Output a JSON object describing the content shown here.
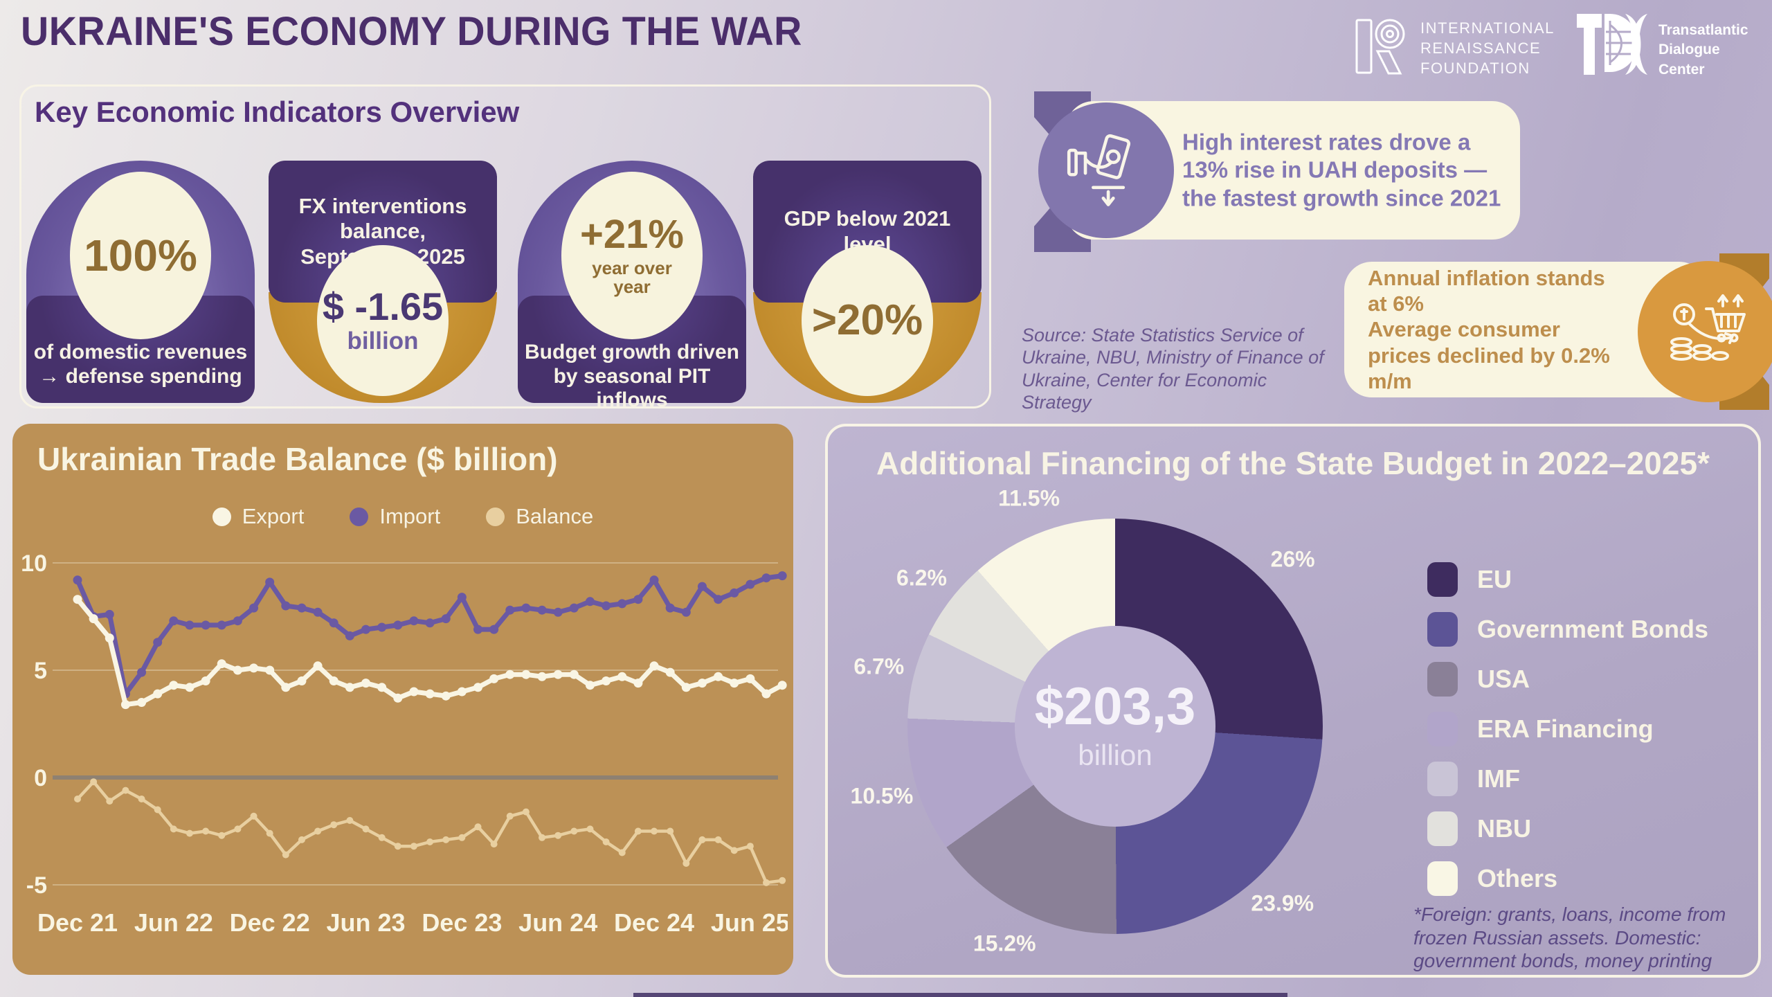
{
  "header": {
    "title": "UKRAINE'S ECONOMY DURING THE WAR",
    "irf_lines": [
      "INTERNATIONAL",
      "RENAISSANCE",
      "FOUNDATION"
    ],
    "tdc_lines": [
      "Transatlantic",
      "Dialogue",
      "Center"
    ]
  },
  "indicators": {
    "title": "Key Economic Indicators Overview",
    "cards": [
      {
        "value": "100%",
        "caption": "of domestic revenues → defense spending"
      },
      {
        "heading": "FX interventions balance, September 2025",
        "value": "$ -1.65",
        "unit": "billion"
      },
      {
        "value": "+21%",
        "subvalue": "year over year",
        "caption": "Budget growth driven by seasonal PIT inflows"
      },
      {
        "heading": "GDP below 2021 level",
        "value": ">20%"
      }
    ]
  },
  "callouts": {
    "deposits": {
      "text": "High interest rates drove a 13% rise in UAH deposits — the fastest growth since 2021",
      "icon": "hand-deposit-icon"
    },
    "inflation": {
      "line1": "Annual inflation stands at 6%",
      "line2": "Average consumer prices declined by 0.2% m/m",
      "icon": "cart-coins-icon"
    }
  },
  "source_note": "Source: State Statistics Service of Ukraine, NBU, Ministry of Finance of Ukraine, Center for Economic Strategy",
  "chart_data": [
    {
      "type": "line",
      "title": "Ukrainian Trade Balance ($ billion)",
      "xlabel": "",
      "ylabel": "",
      "ylim": [
        -6.3,
        10.8
      ],
      "yticks": [
        10,
        5,
        0,
        -5
      ],
      "x_tick_every": 6,
      "x_tick_labels": [
        "Dec 21",
        "Jun 22",
        "Dec 22",
        "Jun 23",
        "Dec 23",
        "Jun 24",
        "Dec 24",
        "Jun 25"
      ],
      "x": [
        "Dec 21",
        "Jan 22",
        "Feb 22",
        "Mar 22",
        "Apr 22",
        "May 22",
        "Jun 22",
        "Jul 22",
        "Aug 22",
        "Sep 22",
        "Oct 22",
        "Nov 22",
        "Dec 22",
        "Jan 23",
        "Feb 23",
        "Mar 23",
        "Apr 23",
        "May 23",
        "Jun 23",
        "Jul 23",
        "Aug 23",
        "Sep 23",
        "Oct 23",
        "Nov 23",
        "Dec 23",
        "Jan 24",
        "Feb 24",
        "Mar 24",
        "Apr 24",
        "May 24",
        "Jun 24",
        "Jul 24",
        "Aug 24",
        "Sep 24",
        "Oct 24",
        "Nov 24",
        "Dec 24",
        "Jan 25",
        "Feb 25",
        "Mar 25",
        "Apr 25",
        "May 25",
        "Jun 25",
        "Jul 25",
        "Aug 25"
      ],
      "series": [
        {
          "name": "Export",
          "color": "#f9f5e4",
          "values": [
            8.3,
            7.4,
            6.5,
            3.4,
            3.5,
            3.9,
            4.3,
            4.2,
            4.5,
            5.3,
            5.0,
            5.1,
            5.0,
            4.2,
            4.5,
            5.2,
            4.5,
            4.2,
            4.4,
            4.2,
            3.7,
            4.0,
            3.9,
            3.8,
            4.0,
            4.2,
            4.6,
            4.8,
            4.8,
            4.7,
            4.8,
            4.8,
            4.3,
            4.5,
            4.7,
            4.4,
            5.2,
            4.9,
            4.2,
            4.4,
            4.7,
            4.4,
            4.6,
            3.9,
            4.3
          ]
        },
        {
          "name": "Import",
          "color": "#6a59a3",
          "values": [
            9.2,
            7.5,
            7.6,
            3.9,
            4.9,
            6.3,
            7.3,
            7.1,
            7.1,
            7.1,
            7.3,
            7.9,
            9.1,
            8.0,
            7.9,
            7.7,
            7.2,
            6.6,
            6.9,
            7.0,
            7.1,
            7.3,
            7.2,
            7.4,
            8.4,
            6.9,
            6.9,
            7.8,
            7.9,
            7.8,
            7.7,
            7.9,
            8.2,
            8.0,
            8.1,
            8.3,
            9.2,
            7.9,
            7.7,
            8.9,
            8.3,
            8.6,
            9.0,
            9.3,
            9.4
          ]
        },
        {
          "name": "Balance",
          "color": "#e8cfa0",
          "values": [
            -1.0,
            -0.2,
            -1.1,
            -0.6,
            -1.0,
            -1.5,
            -2.4,
            -2.6,
            -2.5,
            -2.7,
            -2.4,
            -1.8,
            -2.6,
            -3.6,
            -2.9,
            -2.5,
            -2.2,
            -2.0,
            -2.4,
            -2.8,
            -3.2,
            -3.2,
            -3.0,
            -2.9,
            -2.8,
            -2.3,
            -3.1,
            -1.8,
            -1.6,
            -2.8,
            -2.7,
            -2.5,
            -2.4,
            -3.0,
            -3.5,
            -2.5,
            -2.5,
            -2.5,
            -4.0,
            -2.9,
            -2.9,
            -3.4,
            -3.2,
            -4.9,
            -4.8
          ]
        }
      ],
      "legend_position": "top",
      "grid": true
    },
    {
      "type": "donut",
      "title": "Additional Financing of the State Budget in 2022–2025*",
      "center_value": "$203,3",
      "center_unit": "billion",
      "slices": [
        {
          "label": "EU",
          "pct": 26,
          "color": "#3e2c5f"
        },
        {
          "label": "Government Bonds",
          "pct": 23.9,
          "color": "#5c5496"
        },
        {
          "label": "USA",
          "pct": 15.2,
          "color": "#8a8097"
        },
        {
          "label": "ERA Financing",
          "pct": 10.5,
          "color": "#b1a5ca"
        },
        {
          "label": "IMF",
          "pct": 6.7,
          "color": "#c9c4d6"
        },
        {
          "label": "NBU",
          "pct": 6.2,
          "color": "#e2e1dd"
        },
        {
          "label": "Others",
          "pct": 11.5,
          "color": "#f9f6e5"
        }
      ],
      "footnote": "*Foreign: grants, loans, income from frozen Russian assets. Domestic: government bonds, money printing"
    }
  ]
}
